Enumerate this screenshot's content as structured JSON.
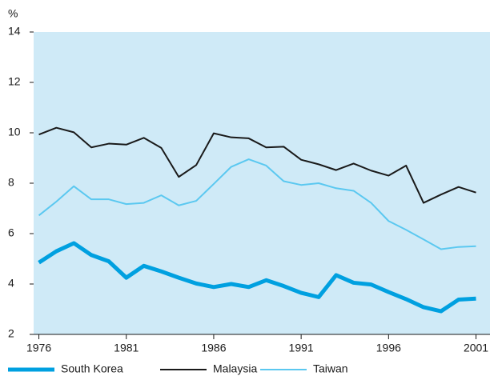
{
  "chart_data": {
    "type": "line",
    "y_unit": "%",
    "x": [
      1976,
      1977,
      1978,
      1979,
      1980,
      1981,
      1982,
      1983,
      1984,
      1985,
      1986,
      1987,
      1988,
      1989,
      1990,
      1991,
      1992,
      1993,
      1994,
      1995,
      1996,
      1997,
      1998,
      1999,
      2000,
      2001
    ],
    "series": [
      {
        "name": "South Korea",
        "color": "#00a0e0",
        "line_width": 5,
        "values": [
          4.85,
          5.3,
          5.62,
          5.15,
          4.9,
          4.25,
          4.72,
          4.5,
          4.25,
          4.02,
          3.88,
          4.0,
          3.88,
          4.15,
          3.92,
          3.65,
          3.48,
          4.35,
          4.05,
          3.98,
          3.68,
          3.4,
          3.08,
          2.92,
          3.38,
          3.42
        ]
      },
      {
        "name": "Malaysia",
        "color": "#1a1a1a",
        "line_width": 2,
        "values": [
          9.93,
          10.2,
          10.02,
          9.42,
          9.57,
          9.53,
          9.8,
          9.4,
          8.25,
          8.72,
          9.98,
          9.82,
          9.78,
          9.42,
          9.45,
          8.93,
          8.75,
          8.52,
          8.78,
          8.5,
          8.3,
          8.7,
          7.22,
          7.55,
          7.85,
          7.63
        ]
      },
      {
        "name": "Taiwan",
        "color": "#5bc8f0",
        "line_width": 2,
        "values": [
          6.72,
          7.27,
          7.88,
          7.36,
          7.36,
          7.17,
          7.22,
          7.52,
          7.12,
          7.3,
          7.97,
          8.65,
          8.95,
          8.7,
          8.08,
          7.93,
          8.0,
          7.8,
          7.7,
          7.22,
          6.5,
          6.15,
          5.77,
          5.38,
          5.47,
          5.5
        ]
      }
    ],
    "xlim": [
      1975.7,
      2001.8
    ],
    "xticks": [
      1976,
      1981,
      1986,
      1991,
      1996,
      2001
    ],
    "ylim": [
      2,
      14
    ],
    "yticks": [
      2,
      4,
      6,
      8,
      10,
      12,
      14
    ],
    "background": "#cfeaf7",
    "grid": false,
    "legend": "bottom"
  }
}
